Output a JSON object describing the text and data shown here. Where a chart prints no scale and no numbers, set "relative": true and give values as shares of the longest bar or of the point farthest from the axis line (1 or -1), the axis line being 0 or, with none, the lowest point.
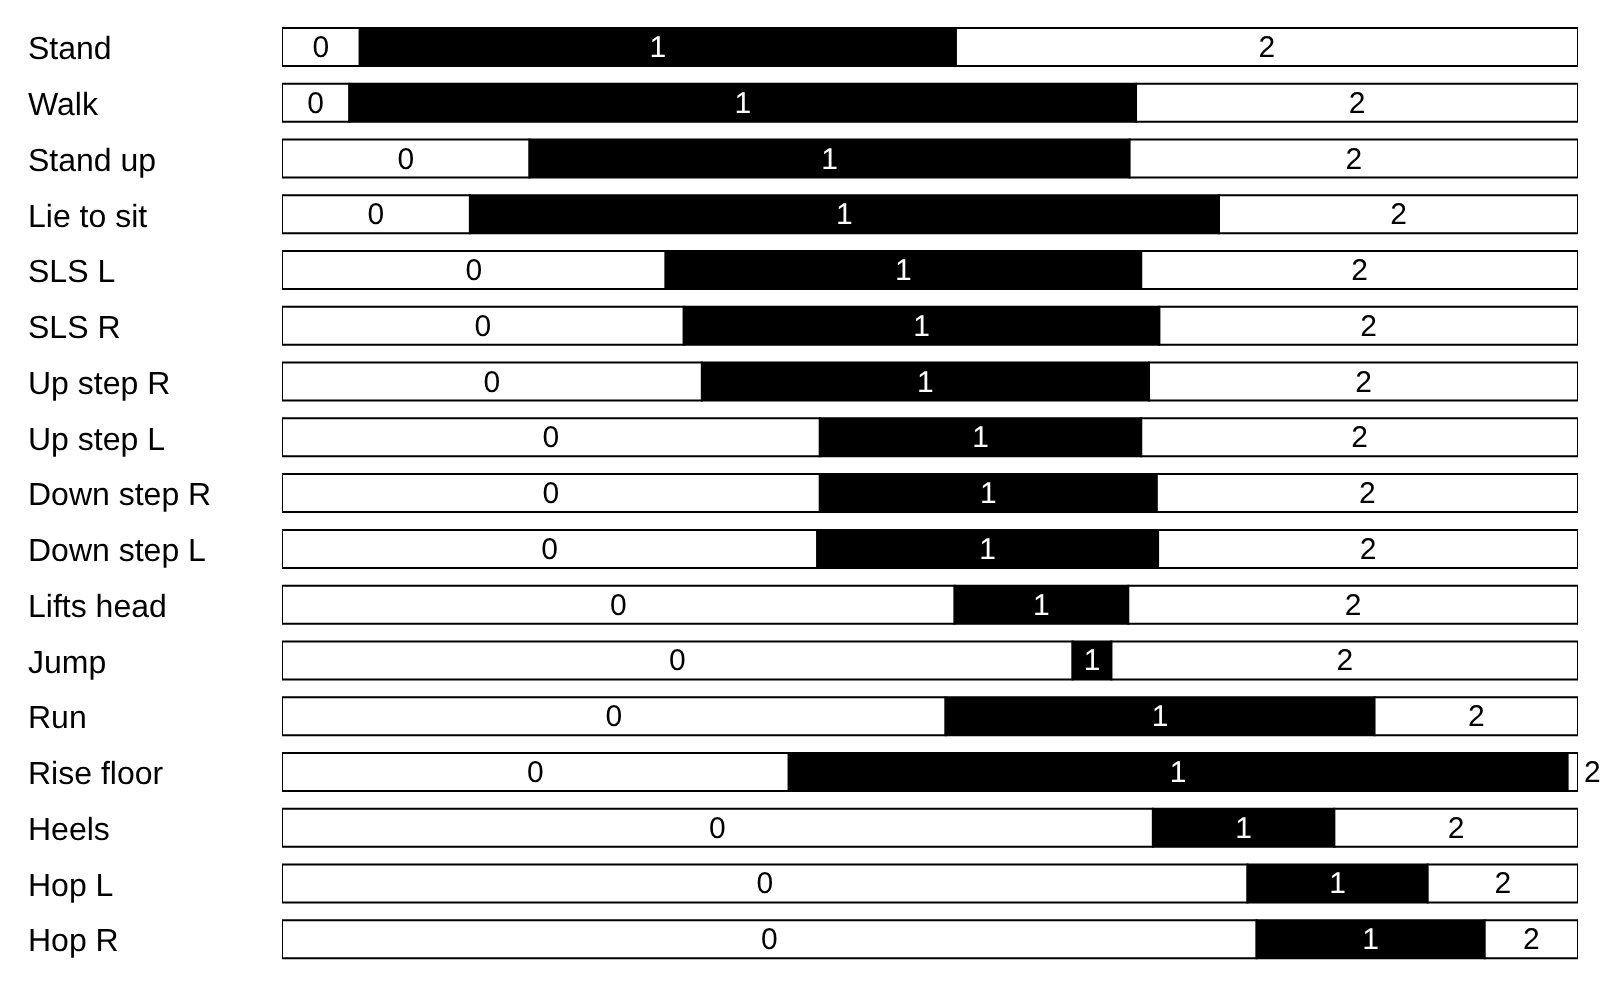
{
  "chart_data": {
    "type": "bar",
    "orientation": "horizontal",
    "stacked": true,
    "relative": true,
    "legend": false,
    "categories": [
      "Stand",
      "Walk",
      "Stand up",
      "Lie to sit",
      "SLS L",
      "SLS R",
      "Up step R",
      "Up step L",
      "Down step R",
      "Down step L",
      "Lifts head",
      "Jump",
      "Run",
      "Rise floor",
      "Heels",
      "Hop L",
      "Hop R"
    ],
    "series": [
      {
        "name": "0",
        "color": "#ffffff",
        "values": [
          0.06,
          0.052,
          0.191,
          0.145,
          0.296,
          0.31,
          0.324,
          0.415,
          0.415,
          0.413,
          0.519,
          0.61,
          0.512,
          0.391,
          0.672,
          0.745,
          0.752
        ]
      },
      {
        "name": "1",
        "color": "#000000",
        "values": [
          0.46,
          0.607,
          0.463,
          0.578,
          0.367,
          0.367,
          0.345,
          0.248,
          0.26,
          0.263,
          0.134,
          0.03,
          0.331,
          0.601,
          0.14,
          0.139,
          0.176
        ]
      },
      {
        "name": "2",
        "color": "#ffffff",
        "values": [
          0.48,
          0.341,
          0.346,
          0.277,
          0.337,
          0.323,
          0.331,
          0.337,
          0.325,
          0.324,
          0.347,
          0.36,
          0.157,
          0.008,
          0.188,
          0.116,
          0.072
        ]
      }
    ]
  }
}
